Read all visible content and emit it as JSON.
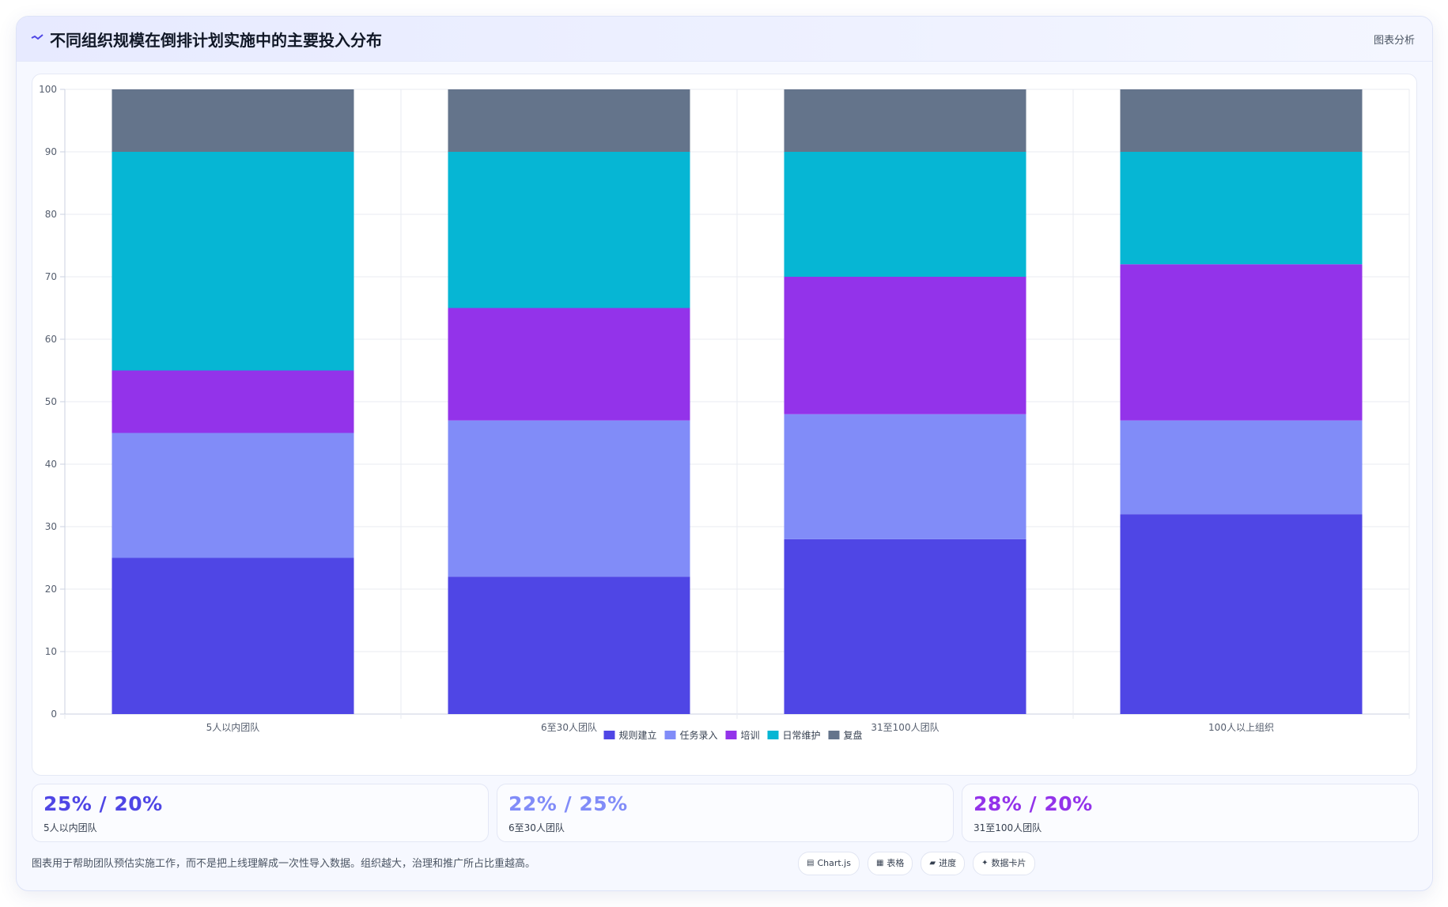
{
  "header": {
    "icon": "chart-line-icon",
    "title": "不同组织规模在倒排计划实施中的主要投入分布",
    "action_label": "图表分析"
  },
  "chart_data": {
    "type": "bar",
    "stacked": true,
    "categories": [
      "5人以内团队",
      "6至30人团队",
      "31至100人团队",
      "100人以上组织"
    ],
    "series": [
      {
        "name": "规则建立",
        "color": "#4f46e5",
        "values": [
          25,
          22,
          28,
          32
        ]
      },
      {
        "name": "任务录入",
        "color": "#818cf8",
        "values": [
          20,
          25,
          20,
          15
        ]
      },
      {
        "name": "培训",
        "color": "#9333ea",
        "values": [
          10,
          18,
          22,
          25
        ]
      },
      {
        "name": "日常维护",
        "color": "#06b6d4",
        "values": [
          35,
          25,
          20,
          18
        ]
      },
      {
        "name": "复盘",
        "color": "#64748b",
        "values": [
          10,
          10,
          10,
          10
        ]
      }
    ],
    "ylim": [
      0,
      100
    ],
    "yticks": [
      0,
      10,
      20,
      30,
      40,
      50,
      60,
      70,
      80,
      90,
      100
    ],
    "xlabel": "",
    "ylabel": "",
    "grid": true,
    "legend_position": "bottom"
  },
  "stats": [
    {
      "value": "25% / 20%",
      "label": "5人以内团队",
      "color": "#4f46e5"
    },
    {
      "value": "22% / 25%",
      "label": "6至30人团队",
      "color": "#818cf8"
    },
    {
      "value": "28% / 20%",
      "label": "31至100人团队",
      "color": "#9333ea"
    }
  ],
  "footnote": "图表用于帮助团队预估实施工作，而不是把上线理解成一次性导入数据。组织越大，治理和推广所占比重越高。",
  "tags": [
    {
      "icon": "chart-icon",
      "glyph": "▤",
      "label": "Chart.js"
    },
    {
      "icon": "table-icon",
      "glyph": "▦",
      "label": "表格"
    },
    {
      "icon": "progress-icon",
      "glyph": "▰",
      "label": "进度"
    },
    {
      "icon": "sparkle-icon",
      "glyph": "✦",
      "label": "数据卡片"
    }
  ]
}
